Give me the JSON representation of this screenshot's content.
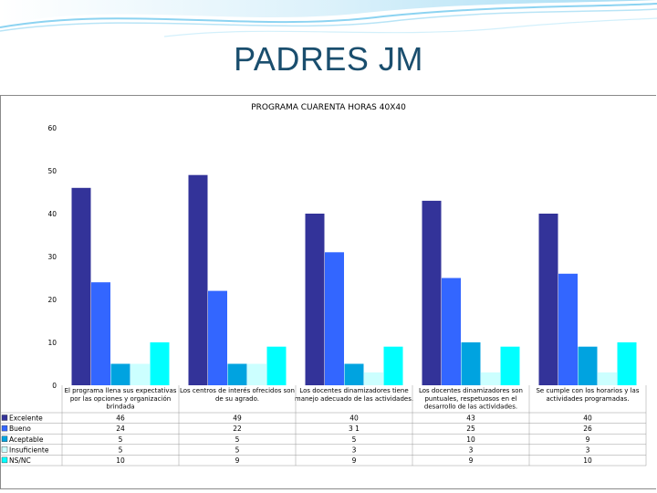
{
  "slide": {
    "title": "PADRES JM"
  },
  "chart_data": {
    "type": "bar",
    "title": "PROGRAMA CUARENTA HORAS 40X40",
    "ylim": [
      0,
      60
    ],
    "yticks": [
      0,
      10,
      20,
      30,
      40,
      50,
      60
    ],
    "grid": false,
    "legend": "table-left",
    "categories": [
      [
        "El programa llena sus expectativas",
        "por las opciones y organización",
        "brindada"
      ],
      [
        "Los centros de interés ofrecidos son",
        "de su agrado."
      ],
      [
        "Los docentes dinamizadores tiene",
        "manejo adecuado de las actividades."
      ],
      [
        "Los docentes dinamizadores son",
        "puntuales, respetuosos en el",
        "desarrollo de las actividades."
      ],
      [
        "Se cumple con los horarios y las",
        "actividades programadas."
      ]
    ],
    "series": [
      {
        "name": "Excelente",
        "color": "#333399",
        "values": [
          46,
          49,
          40,
          43,
          40
        ],
        "labels": [
          "46",
          "49",
          "40",
          "43",
          "40"
        ]
      },
      {
        "name": "Bueno",
        "color": "#3366ff",
        "values": [
          24,
          22,
          31,
          25,
          26
        ],
        "labels": [
          "24",
          "22",
          "3 1",
          "25",
          "26"
        ]
      },
      {
        "name": "Aceptable",
        "color": "#00a3e0",
        "values": [
          5,
          5,
          5,
          10,
          9
        ],
        "labels": [
          "5",
          "5",
          "5",
          "10",
          "9"
        ]
      },
      {
        "name": "Insuficiente",
        "color": "#ccffff",
        "values": [
          5,
          5,
          3,
          3,
          3
        ],
        "labels": [
          "5",
          "5",
          "3",
          "3",
          "3"
        ]
      },
      {
        "name": "NS/NC",
        "color": "#00ffff",
        "values": [
          10,
          9,
          9,
          9,
          10
        ],
        "labels": [
          "10",
          "9",
          "9",
          "9",
          "10"
        ]
      }
    ]
  }
}
